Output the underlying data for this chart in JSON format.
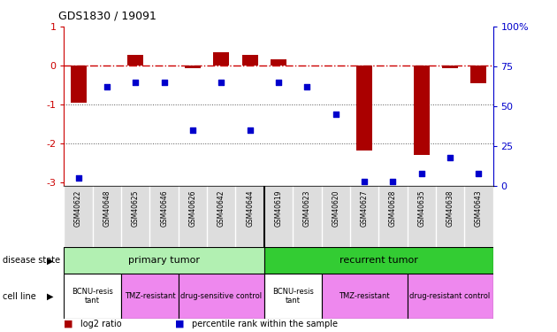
{
  "title": "GDS1830 / 19091",
  "samples": [
    "GSM40622",
    "GSM40648",
    "GSM40625",
    "GSM40646",
    "GSM40626",
    "GSM40642",
    "GSM40644",
    "GSM40619",
    "GSM40623",
    "GSM40620",
    "GSM40627",
    "GSM40628",
    "GSM40635",
    "GSM40638",
    "GSM40643"
  ],
  "log2_ratio": [
    -0.95,
    0.0,
    0.28,
    0.0,
    -0.07,
    0.33,
    0.28,
    0.15,
    0.0,
    0.0,
    -2.2,
    0.0,
    -2.3,
    -0.07,
    -0.45
  ],
  "percentile_rank": [
    5,
    62,
    65,
    65,
    35,
    65,
    35,
    65,
    62,
    45,
    3,
    3,
    8,
    18,
    8
  ],
  "ylim_left": [
    -3.1,
    1.0
  ],
  "ylim_right": [
    0,
    100
  ],
  "disease_state_groups": [
    {
      "label": "primary tumor",
      "start": 0,
      "end": 7,
      "color": "#b2f0b2"
    },
    {
      "label": "recurrent tumor",
      "start": 7,
      "end": 15,
      "color": "#33cc33"
    }
  ],
  "cell_line_groups": [
    {
      "label": "BCNU-resis\ntant",
      "start": 0,
      "end": 2,
      "color": "#ffffff"
    },
    {
      "label": "TMZ-resistant",
      "start": 2,
      "end": 4,
      "color": "#ee88ee"
    },
    {
      "label": "drug-sensitive control",
      "start": 4,
      "end": 7,
      "color": "#ee88ee"
    },
    {
      "label": "BCNU-resis\ntant",
      "start": 7,
      "end": 9,
      "color": "#ffffff"
    },
    {
      "label": "TMZ-resistant",
      "start": 9,
      "end": 12,
      "color": "#ee88ee"
    },
    {
      "label": "drug-resistant control",
      "start": 12,
      "end": 15,
      "color": "#ee88ee"
    }
  ],
  "bar_color": "#aa0000",
  "dot_color": "#0000cc",
  "dashed_line_color": "#cc0000",
  "dotted_line_color": "#555555",
  "left_axis_color": "#cc0000",
  "right_axis_color": "#0000cc",
  "bg_color": "#ffffff",
  "left_yticks": [
    -3,
    -2,
    -1,
    0,
    1
  ],
  "left_yticklabels": [
    "-3",
    "-2",
    "-1",
    "0",
    "1"
  ],
  "right_yticks": [
    0,
    25,
    50,
    75,
    100
  ],
  "right_yticklabels": [
    "0",
    "25",
    "50",
    "75",
    "100%"
  ]
}
